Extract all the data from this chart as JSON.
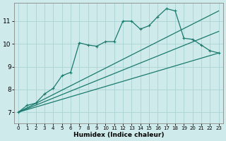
{
  "xlabel": "Humidex (Indice chaleur)",
  "background_color": "#ceeaea",
  "grid_color": "#aad4d4",
  "line_color": "#1a7a6e",
  "xlim": [
    -0.5,
    23.5
  ],
  "ylim": [
    6.5,
    11.8
  ],
  "x_ticks": [
    0,
    1,
    2,
    3,
    4,
    5,
    6,
    7,
    8,
    9,
    10,
    11,
    12,
    13,
    14,
    15,
    16,
    17,
    18,
    19,
    20,
    21,
    22,
    23
  ],
  "y_ticks": [
    7,
    8,
    9,
    10,
    11
  ],
  "line1_x": [
    0,
    1,
    2,
    3,
    4,
    5,
    6,
    7,
    8,
    9,
    10,
    11,
    12,
    13,
    14,
    15,
    16,
    17,
    18,
    19,
    20,
    21,
    22,
    23
  ],
  "line1_y": [
    7.0,
    7.3,
    7.4,
    7.8,
    8.05,
    8.6,
    8.75,
    10.05,
    9.95,
    9.9,
    10.1,
    10.1,
    11.0,
    11.0,
    10.65,
    10.8,
    11.2,
    11.55,
    11.45,
    10.25,
    10.2,
    9.95,
    9.7,
    9.6
  ],
  "line2_x": [
    0,
    23
  ],
  "line2_y": [
    7.0,
    11.45
  ],
  "line3_x": [
    0,
    23
  ],
  "line3_y": [
    7.0,
    10.55
  ],
  "line4_x": [
    0,
    23
  ],
  "line4_y": [
    7.0,
    9.6
  ],
  "marker": "+",
  "markersize": 3.5,
  "linewidth": 0.9,
  "tick_fontsize_x": 5.0,
  "tick_fontsize_y": 6.5,
  "xlabel_fontsize": 6.5
}
